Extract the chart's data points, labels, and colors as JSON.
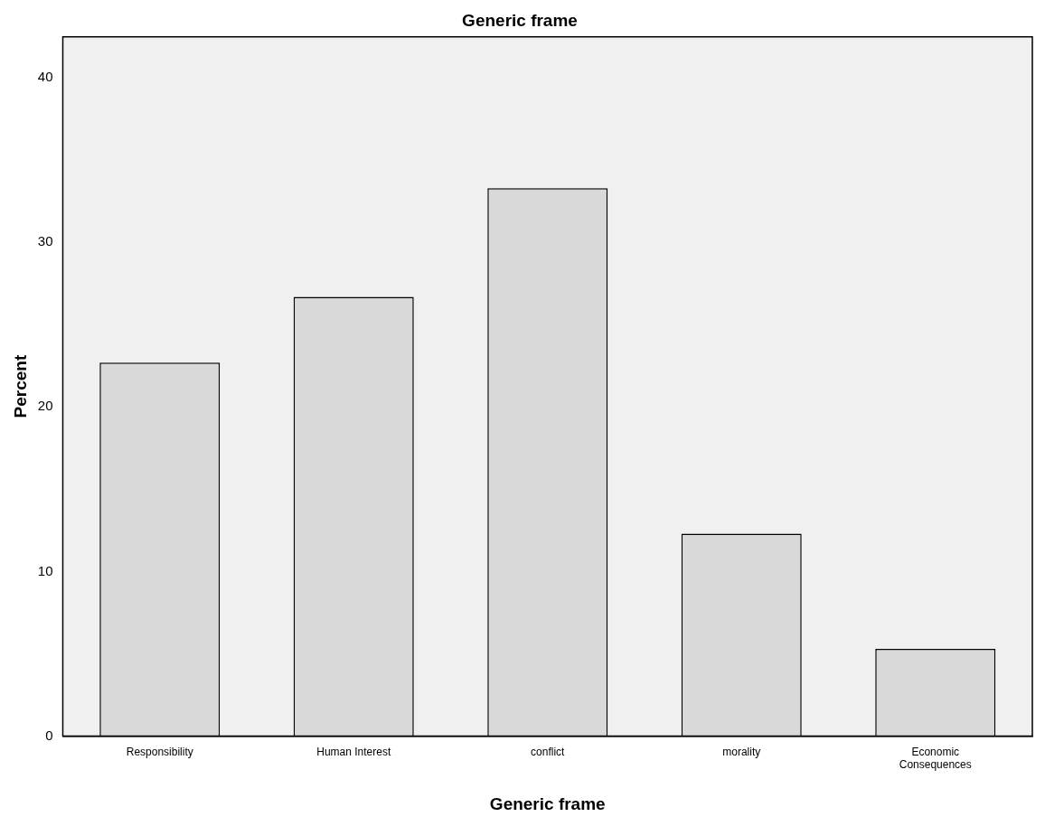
{
  "chart_data": {
    "type": "bar",
    "title": "Generic frame",
    "xlabel": "Generic frame",
    "ylabel": "Percent",
    "categories": [
      "Responsibility",
      "Human Interest",
      "conflict",
      "morality",
      "Economic Consequences"
    ],
    "values": [
      22.7,
      26.7,
      33.3,
      12.3,
      5.3
    ],
    "color": "#d9d9d9",
    "ylim": [
      0,
      42.5
    ],
    "yticks": [
      0,
      10,
      20,
      30,
      40
    ],
    "grid": false,
    "legend": false
  }
}
